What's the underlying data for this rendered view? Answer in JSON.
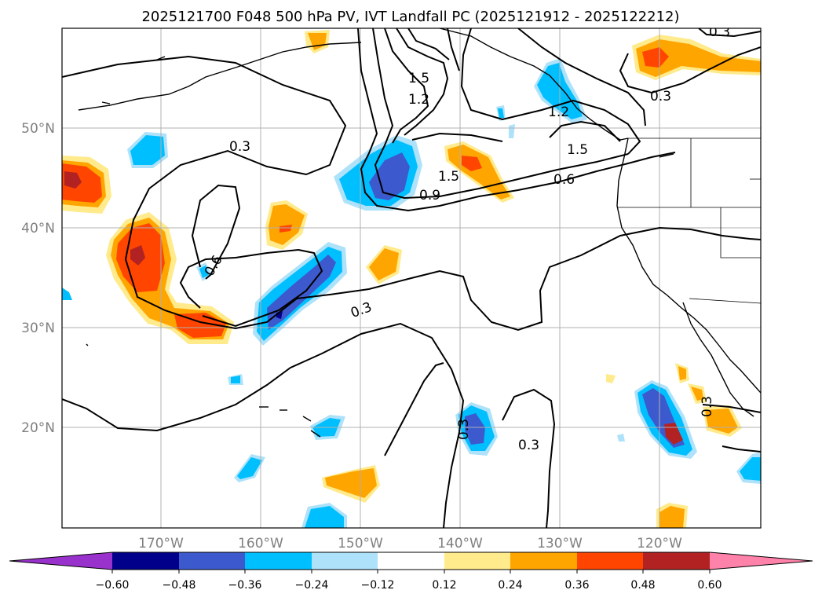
{
  "title": "2025121700 F048 500 hPa PV, IVT Landfall PC (2025121912 - 2025122212)",
  "map": {
    "lat_labels": [
      "50°N",
      "40°N",
      "30°N",
      "20°N"
    ],
    "lon_labels": [
      "170°W",
      "160°W",
      "150°W",
      "140°W",
      "130°W",
      "120°W"
    ],
    "extent": {
      "lon_min": -180,
      "lon_max": -110,
      "lat_min": 10,
      "lat_max": 60
    },
    "gridlines": true,
    "contour_labels": [
      "0.3",
      "1.5",
      "1.2",
      "1.2",
      "0.3",
      "1.5",
      "1.5",
      "0.6",
      "0.9",
      "0.6",
      "0.3",
      "0.3",
      "0.3",
      "0.3",
      "0.3"
    ]
  },
  "colorbar": {
    "ticks": [
      "−0.60",
      "−0.48",
      "−0.36",
      "−0.24",
      "−0.12",
      "0.12",
      "0.24",
      "0.36",
      "0.48",
      "0.60"
    ],
    "colors": [
      "#9932cc",
      "#00008b",
      "#3c5acd",
      "#00bfff",
      "#aee2fa",
      "#ffffff",
      "#ffea8c",
      "#ffa500",
      "#ff4500",
      "#b22222",
      "#ff82ab"
    ]
  }
}
